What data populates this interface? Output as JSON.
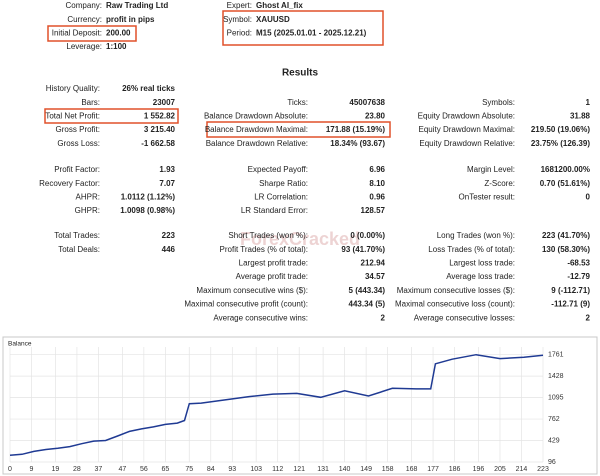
{
  "header": {
    "left": [
      {
        "label": "Company:",
        "value": "Raw Trading Ltd"
      },
      {
        "label": "Currency:",
        "value": "profit in pips"
      },
      {
        "label": "Initial Deposit:",
        "value": "200.00"
      },
      {
        "label": "Leverage:",
        "value": "1:100"
      }
    ],
    "right": [
      {
        "label": "Expert:",
        "value": "Ghost AI_fix"
      },
      {
        "label": "Symbol:",
        "value": "XAUUSD"
      },
      {
        "label": "Period:",
        "value": "M15 (2025.01.01 - 2025.12.21)"
      }
    ]
  },
  "results": {
    "title": "Results",
    "groups": [
      [
        [
          {
            "label": "History Quality:",
            "value": "26% real ticks"
          },
          null,
          null
        ],
        [
          {
            "label": "Bars:",
            "value": "23007"
          },
          {
            "label": "Ticks:",
            "value": "45007638"
          },
          {
            "label": "Symbols:",
            "value": "1"
          }
        ],
        [
          {
            "label": "Total Net Profit:",
            "value": "1 552.82"
          },
          {
            "label": "Balance Drawdown Absolute:",
            "value": "23.80"
          },
          {
            "label": "Equity Drawdown Absolute:",
            "value": "31.88"
          }
        ],
        [
          {
            "label": "Gross Profit:",
            "value": "3 215.40"
          },
          {
            "label": "Balance Drawdown Maximal:",
            "value": "171.88 (15.19%)"
          },
          {
            "label": "Equity Drawdown Maximal:",
            "value": "219.50 (19.06%)"
          }
        ],
        [
          {
            "label": "Gross Loss:",
            "value": "-1 662.58"
          },
          {
            "label": "Balance Drawdown Relative:",
            "value": "18.34% (93.67)"
          },
          {
            "label": "Equity Drawdown Relative:",
            "value": "23.75% (126.39)"
          }
        ]
      ],
      [
        [
          {
            "label": "Profit Factor:",
            "value": "1.93"
          },
          {
            "label": "Expected Payoff:",
            "value": "6.96"
          },
          {
            "label": "Margin Level:",
            "value": "1681200.00%"
          }
        ],
        [
          {
            "label": "Recovery Factor:",
            "value": "7.07"
          },
          {
            "label": "Sharpe Ratio:",
            "value": "8.10"
          },
          {
            "label": "Z-Score:",
            "value": "0.70 (51.61%)"
          }
        ],
        [
          {
            "label": "AHPR:",
            "value": "1.0112 (1.12%)"
          },
          {
            "label": "LR Correlation:",
            "value": "0.96"
          },
          {
            "label": "OnTester result:",
            "value": "0"
          }
        ],
        [
          {
            "label": "GHPR:",
            "value": "1.0098 (0.98%)"
          },
          {
            "label": "LR Standard Error:",
            "value": "128.57"
          },
          null
        ]
      ],
      [
        [
          {
            "label": "Total Trades:",
            "value": "223"
          },
          {
            "label": "Short Trades (won %):",
            "value": "0 (0.00%)"
          },
          {
            "label": "Long Trades (won %):",
            "value": "223 (41.70%)"
          }
        ],
        [
          {
            "label": "Total Deals:",
            "value": "446"
          },
          {
            "label": "Profit Trades (% of total):",
            "value": "93 (41.70%)"
          },
          {
            "label": "Loss Trades (% of total):",
            "value": "130 (58.30%)"
          }
        ],
        [
          null,
          {
            "label": "Largest profit trade:",
            "value": "212.94"
          },
          {
            "label": "Largest loss trade:",
            "value": "-68.53"
          }
        ],
        [
          null,
          {
            "label": "Average profit trade:",
            "value": "34.57"
          },
          {
            "label": "Average loss trade:",
            "value": "-12.79"
          }
        ],
        [
          null,
          {
            "label": "Maximum consecutive wins ($):",
            "value": "5 (443.34)"
          },
          {
            "label": "Maximum consecutive losses ($):",
            "value": "9 (-112.71)"
          }
        ],
        [
          null,
          {
            "label": "Maximal consecutive profit (count):",
            "value": "443.34 (5)"
          },
          {
            "label": "Maximal consecutive loss (count):",
            "value": "-112.71 (9)"
          }
        ],
        [
          null,
          {
            "label": "Average consecutive wins:",
            "value": "2"
          },
          {
            "label": "Average consecutive losses:",
            "value": "2"
          }
        ]
      ]
    ]
  },
  "watermark": "ForexCracked",
  "chart_data": {
    "type": "line",
    "title": "Balance",
    "color": "#1f3a93",
    "grid": true,
    "x": [
      0,
      5,
      10,
      15,
      20,
      25,
      30,
      35,
      40,
      45,
      50,
      55,
      60,
      65,
      70,
      73,
      75,
      80,
      90,
      100,
      110,
      120,
      130,
      140,
      150,
      160,
      170,
      176,
      178,
      185,
      195,
      205,
      215,
      223
    ],
    "values": [
      200,
      215,
      260,
      290,
      310,
      335,
      380,
      420,
      430,
      500,
      570,
      610,
      640,
      680,
      700,
      740,
      1000,
      1010,
      1060,
      1110,
      1150,
      1160,
      1100,
      1200,
      1120,
      1240,
      1230,
      1230,
      1620,
      1690,
      1760,
      1700,
      1720,
      1752.82
    ],
    "xlim": [
      0,
      223
    ],
    "ylim": [
      96,
      1880
    ],
    "xticks": [
      0,
      9,
      19,
      28,
      37,
      47,
      56,
      65,
      75,
      84,
      93,
      103,
      112,
      121,
      131,
      140,
      149,
      158,
      168,
      177,
      186,
      196,
      205,
      214,
      223
    ],
    "yticks": [
      96,
      429,
      762,
      1095,
      1428,
      1761
    ]
  }
}
